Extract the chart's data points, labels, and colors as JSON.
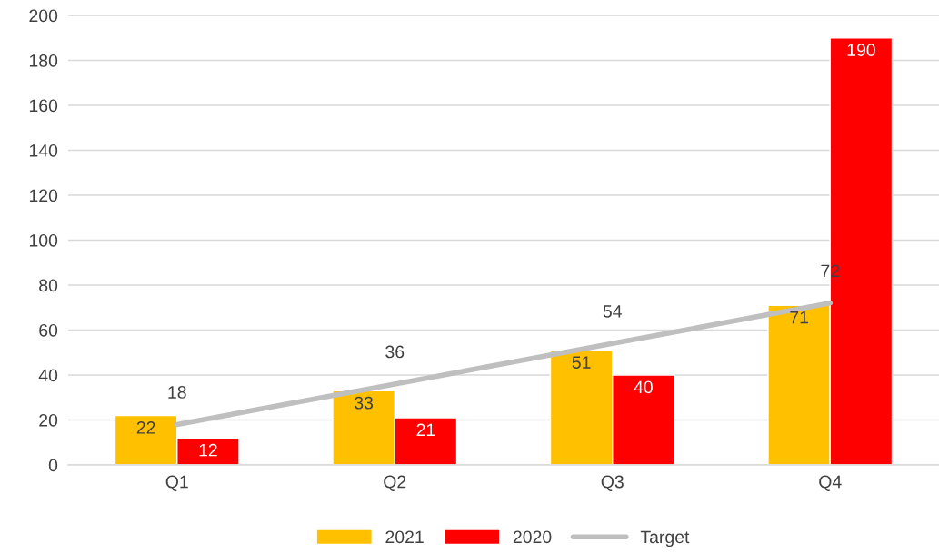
{
  "chart_data": {
    "type": "bar",
    "categories": [
      "Q1",
      "Q2",
      "Q3",
      "Q4"
    ],
    "series": [
      {
        "name": "2021",
        "color": "#ffc000",
        "values": [
          22,
          33,
          51,
          71
        ]
      },
      {
        "name": "2020",
        "color": "#ff0000",
        "values": [
          12,
          21,
          40,
          190
        ]
      },
      {
        "name": "Target",
        "type": "line",
        "color": "#bfbfbf",
        "values": [
          18,
          36,
          54,
          72
        ]
      }
    ],
    "ylim": [
      0,
      200
    ],
    "yticks": [
      0,
      20,
      40,
      60,
      80,
      100,
      120,
      140,
      160,
      180,
      200
    ],
    "grid": "y",
    "legend": "bottom",
    "data_labels": true,
    "marker": "none",
    "line_style": "solid"
  }
}
